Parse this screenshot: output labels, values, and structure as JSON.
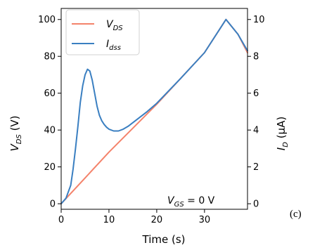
{
  "chart_data": {
    "type": "line",
    "xlabel": "Time (s)",
    "ylabel": "V_DS (V)",
    "ylabel_right": "I_D (μA)",
    "xlim": [
      0,
      39
    ],
    "ylim": [
      -3,
      106
    ],
    "ylim_right": [
      -0.3,
      10.6
    ],
    "xticks": [
      0,
      10,
      20,
      30
    ],
    "yticks": [
      0,
      20,
      40,
      60,
      80,
      100
    ],
    "yticks_right": [
      0,
      2,
      4,
      6,
      8,
      10
    ],
    "legend_position": "top-left",
    "annotation": "V_GS = 0 V",
    "panel_label": "(c)",
    "colors": {
      "vds": "#f4836b",
      "idss": "#3a7fc1"
    },
    "series": [
      {
        "name": "V_DS",
        "axis": "left",
        "x": [
          0,
          5,
          10,
          15,
          20,
          25,
          30,
          34.5,
          37,
          39
        ],
        "y": [
          0,
          14,
          28,
          41,
          54,
          68,
          82,
          100,
          92,
          82
        ]
      },
      {
        "name": "I_dss",
        "axis": "right",
        "x": [
          0,
          1,
          2,
          2.5,
          3,
          3.5,
          4,
          4.5,
          5,
          5.5,
          6,
          6.5,
          7,
          7.5,
          8,
          8.5,
          9,
          9.5,
          10,
          11,
          12,
          13,
          14,
          15,
          16,
          18,
          20,
          25,
          30,
          34.5,
          37,
          39
        ],
        "y": [
          0,
          0.3,
          1.0,
          1.9,
          3.0,
          4.2,
          5.5,
          6.4,
          7.0,
          7.3,
          7.2,
          6.7,
          6.0,
          5.3,
          4.8,
          4.5,
          4.3,
          4.15,
          4.05,
          3.95,
          3.95,
          4.05,
          4.2,
          4.4,
          4.6,
          5.0,
          5.45,
          6.8,
          8.2,
          10.0,
          9.2,
          8.3
        ]
      }
    ]
  }
}
